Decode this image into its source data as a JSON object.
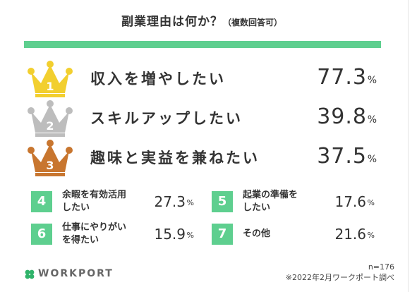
{
  "title": {
    "main": "副業理由は何か？",
    "sub": "（複数回答可）"
  },
  "accent_color": "#5ecf8f",
  "chart_data": {
    "type": "table",
    "title": "副業理由は何か？（複数回答可）",
    "unit": "%",
    "top3": [
      {
        "rank": "1",
        "label": "収入を増やしたい",
        "value": "77.3",
        "crown": "gold-crown-icon",
        "color": "#f2cf2f"
      },
      {
        "rank": "2",
        "label": "スキルアップしたい",
        "value": "39.8",
        "crown": "silver-crown-icon",
        "color": "#bdbdbd"
      },
      {
        "rank": "3",
        "label": "趣味と実益を兼ねたい",
        "value": "37.5",
        "crown": "bronze-crown-icon",
        "color": "#c8762f"
      }
    ],
    "others": [
      {
        "rank": "4",
        "label_line1": "余暇を有効活用",
        "label_line2": "したい",
        "value": "27.3"
      },
      {
        "rank": "5",
        "label_line1": "起業の準備を",
        "label_line2": "したい",
        "value": "17.6"
      },
      {
        "rank": "6",
        "label_line1": "仕事にやりがい",
        "label_line2": "を得たい",
        "value": "15.9"
      },
      {
        "rank": "7",
        "label_line1": "その他",
        "label_line2": "",
        "value": "21.6"
      }
    ]
  },
  "footer": {
    "logo": "WORKPORT",
    "n": "n=176",
    "source": "※2022年2月ワークポート調べ"
  }
}
